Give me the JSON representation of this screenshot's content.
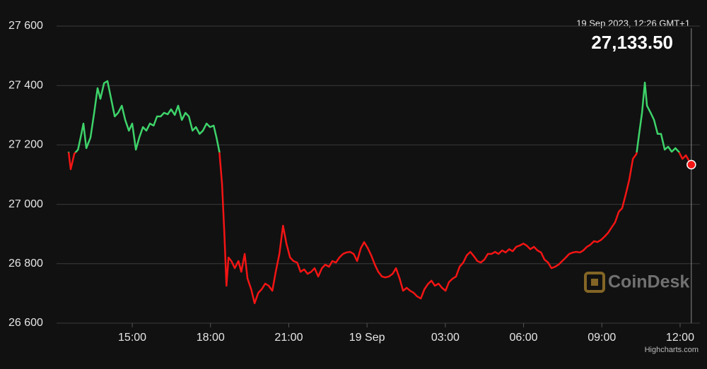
{
  "chart_data": {
    "type": "line",
    "x": [
      -11.44,
      -11.36,
      -11.22,
      -11.08,
      -10.95,
      -10.87,
      -10.76,
      -10.6,
      -10.46,
      -10.33,
      -10.22,
      -10.08,
      -9.95,
      -9.81,
      -9.67,
      -9.54,
      -9.4,
      -9.27,
      -9.13,
      -9.0,
      -8.86,
      -8.73,
      -8.59,
      -8.46,
      -8.32,
      -8.18,
      -8.05,
      -7.91,
      -7.78,
      -7.64,
      -7.51,
      -7.37,
      -7.24,
      -7.1,
      -6.96,
      -6.83,
      -6.69,
      -6.56,
      -6.42,
      -6.29,
      -6.15,
      -6.02,
      -5.88,
      -5.77,
      -5.66,
      -5.56,
      -5.47,
      -5.39,
      -5.31,
      -5.2,
      -5.07,
      -4.93,
      -4.82,
      -4.69,
      -4.58,
      -4.44,
      -4.31,
      -4.17,
      -4.04,
      -3.9,
      -3.77,
      -3.63,
      -3.5,
      -3.36,
      -3.22,
      -3.09,
      -2.95,
      -2.82,
      -2.68,
      -2.55,
      -2.41,
      -2.28,
      -2.14,
      -2.01,
      -1.87,
      -1.73,
      -1.6,
      -1.46,
      -1.33,
      -1.19,
      -1.06,
      -0.92,
      -0.79,
      -0.65,
      -0.51,
      -0.38,
      -0.24,
      -0.11,
      0.03,
      0.16,
      0.3,
      0.43,
      0.57,
      0.7,
      0.84,
      0.98,
      1.11,
      1.25,
      1.38,
      1.52,
      1.65,
      1.79,
      1.92,
      2.06,
      2.2,
      2.33,
      2.47,
      2.6,
      2.74,
      2.87,
      3.01,
      3.14,
      3.28,
      3.41,
      3.55,
      3.69,
      3.82,
      3.96,
      4.09,
      4.23,
      4.36,
      4.5,
      4.63,
      4.77,
      4.91,
      5.04,
      5.18,
      5.31,
      5.45,
      5.58,
      5.72,
      5.85,
      5.99,
      6.12,
      6.26,
      6.4,
      6.53,
      6.67,
      6.8,
      6.94,
      7.07,
      7.21,
      7.34,
      7.48,
      7.62,
      7.75,
      7.89,
      8.02,
      8.16,
      8.29,
      8.43,
      8.56,
      8.7,
      8.83,
      8.97,
      9.11,
      9.24,
      9.38,
      9.51,
      9.65,
      9.78,
      9.92,
      10.05,
      10.19,
      10.33,
      10.43,
      10.54,
      10.65,
      10.73,
      10.87,
      11.0,
      11.14,
      11.27,
      11.41,
      11.54,
      11.68,
      11.82,
      11.95,
      12.09,
      12.22,
      12.43
    ],
    "values": [
      27177,
      27118,
      27170,
      27184,
      27237,
      27272,
      27189,
      27225,
      27308,
      27391,
      27355,
      27408,
      27415,
      27355,
      27296,
      27308,
      27332,
      27284,
      27248,
      27272,
      27184,
      27225,
      27260,
      27248,
      27272,
      27265,
      27296,
      27296,
      27308,
      27303,
      27320,
      27301,
      27332,
      27284,
      27308,
      27296,
      27248,
      27260,
      27237,
      27248,
      27272,
      27260,
      27265,
      27225,
      27177,
      27070,
      26904,
      26726,
      26821,
      26809,
      26785,
      26809,
      26773,
      26833,
      26750,
      26714,
      26667,
      26702,
      26714,
      26733,
      26726,
      26709,
      26773,
      26833,
      26928,
      26868,
      26821,
      26809,
      26804,
      26773,
      26781,
      26766,
      26773,
      26785,
      26757,
      26785,
      26797,
      26790,
      26809,
      26804,
      26821,
      26833,
      26838,
      26840,
      26833,
      26809,
      26852,
      26873,
      26852,
      26828,
      26797,
      26773,
      26757,
      26754,
      26757,
      26766,
      26785,
      26750,
      26709,
      26719,
      26709,
      26702,
      26690,
      26683,
      26714,
      26731,
      26743,
      26726,
      26733,
      26719,
      26709,
      26738,
      26750,
      26757,
      26790,
      26804,
      26828,
      26840,
      26826,
      26809,
      26804,
      26814,
      26833,
      26833,
      26840,
      26833,
      26845,
      26838,
      26849,
      26842,
      26857,
      26861,
      26868,
      26861,
      26849,
      26857,
      26845,
      26838,
      26814,
      26804,
      26785,
      26790,
      26797,
      26809,
      26821,
      26833,
      26838,
      26840,
      26838,
      26845,
      26857,
      26864,
      26876,
      26873,
      26880,
      26892,
      26904,
      26923,
      26940,
      26975,
      26987,
      27035,
      27082,
      27153,
      27170,
      27237,
      27308,
      27410,
      27332,
      27308,
      27284,
      27237,
      27237,
      27184,
      27194,
      27177,
      27189,
      27177,
      27153,
      27165,
      27133.5
    ],
    "threshold": 27175,
    "color_above": "#3ed36a",
    "color_below": "#f41414",
    "xlim": [
      -11.63,
      12.76
    ],
    "xticks": [
      {
        "value": -9,
        "label": "15:00"
      },
      {
        "value": -6,
        "label": "18:00"
      },
      {
        "value": -3,
        "label": "21:00"
      },
      {
        "value": 0,
        "label": "19 Sep"
      },
      {
        "value": 3,
        "label": "03:00"
      },
      {
        "value": 6,
        "label": "06:00"
      },
      {
        "value": 9,
        "label": "09:00"
      },
      {
        "value": 12,
        "label": "12:00"
      }
    ],
    "ylim": [
      26600,
      27600
    ],
    "yticks": [
      {
        "value": 26600,
        "label": "26 600"
      },
      {
        "value": 26800,
        "label": "26 800"
      },
      {
        "value": 27000,
        "label": "27 000"
      },
      {
        "value": 27200,
        "label": "27 200"
      },
      {
        "value": 27400,
        "label": "27 400"
      },
      {
        "value": 27600,
        "label": "27 600"
      }
    ],
    "grid": true,
    "tooltip": {
      "label": "19 Sep 2023, 12:26 GMT+1",
      "value_label": "27,133.50"
    },
    "watermark": "CoinDesk",
    "credits": "Highcharts.com"
  }
}
